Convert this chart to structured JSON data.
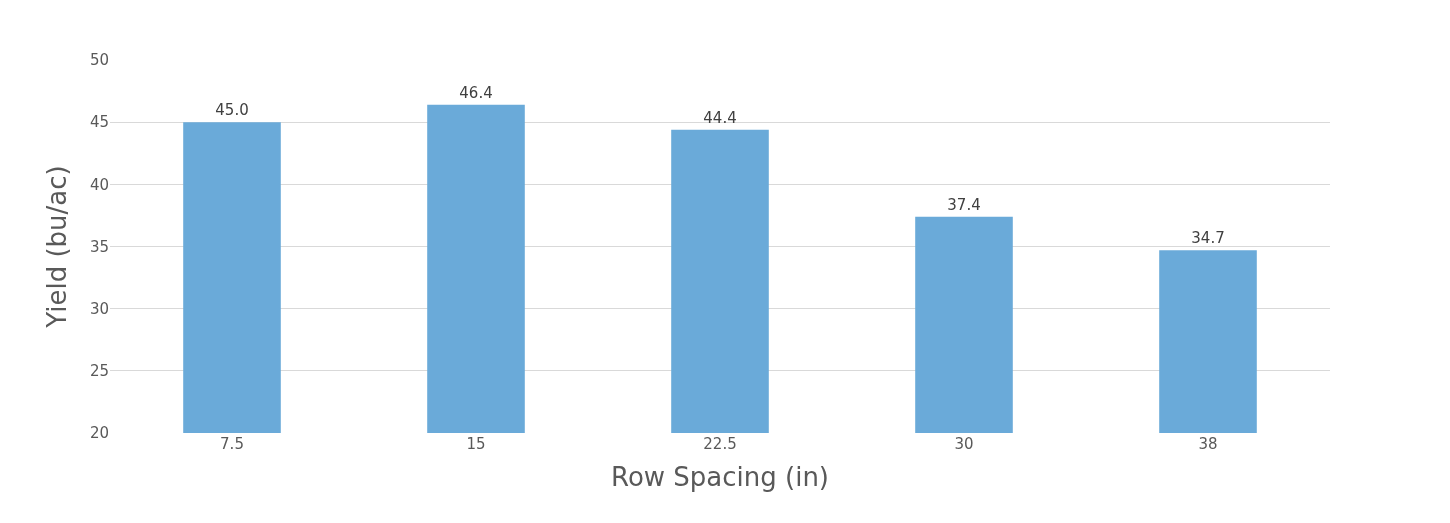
{
  "chart_data": {
    "type": "bar",
    "xlabel": "Row Spacing (in)",
    "ylabel": "Yield (bu/ac)",
    "categories": [
      "7.5",
      "15",
      "22.5",
      "30",
      "38"
    ],
    "values": [
      45.0,
      46.4,
      44.4,
      37.4,
      34.7
    ],
    "value_labels": [
      "45.0",
      "46.4",
      "44.4",
      "37.4",
      "34.7"
    ],
    "color": "#6aaad9",
    "ylim": [
      20,
      50
    ],
    "yticks": [
      20,
      25,
      30,
      35,
      40,
      45,
      50
    ],
    "grid": "y"
  }
}
